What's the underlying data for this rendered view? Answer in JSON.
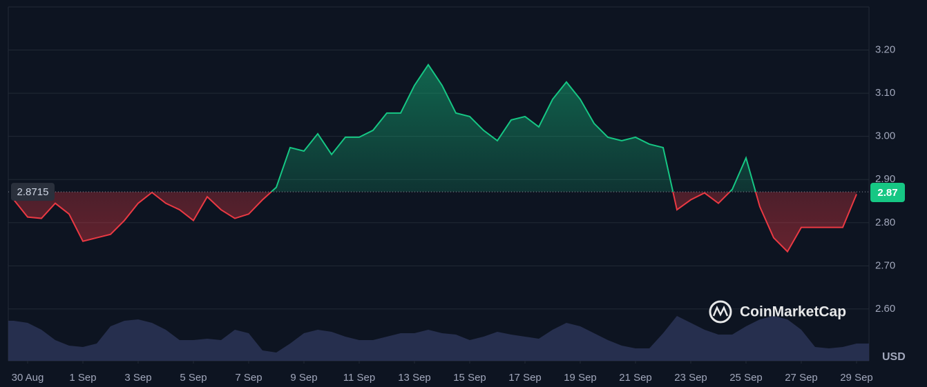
{
  "chart_data": {
    "type": "line",
    "watermark": "CoinMarketCap",
    "currency": "USD",
    "baseline": 2.8715,
    "price_label": 2.87,
    "colors": {
      "up": "#16c784",
      "down": "#ea3943",
      "volume": "#2b3456"
    },
    "x": [
      -0.5,
      0,
      0.5,
      1,
      1.5,
      2,
      2.5,
      3,
      3.5,
      4,
      4.5,
      5,
      5.5,
      6,
      6.5,
      7,
      7.5,
      8,
      8.5,
      9,
      9.5,
      10,
      10.5,
      11,
      11.5,
      12,
      12.5,
      13,
      13.5,
      14,
      14.5,
      15,
      15.5,
      16,
      16.5,
      17,
      17.5,
      18,
      18.5,
      19,
      19.5,
      20,
      20.5,
      21,
      21.5,
      22,
      22.5,
      23,
      23.5,
      24,
      24.5,
      25,
      25.5,
      26,
      26.5,
      27,
      27.5,
      28,
      28.5,
      29,
      29.5,
      30
    ],
    "series": [
      {
        "name": "Price",
        "values": [
          2.853,
          2.813,
          2.81,
          2.845,
          2.82,
          2.757,
          2.765,
          2.773,
          2.805,
          2.845,
          2.87,
          2.845,
          2.83,
          2.805,
          2.86,
          2.83,
          2.81,
          2.82,
          2.853,
          2.882,
          2.974,
          2.966,
          3.006,
          2.958,
          2.998,
          2.998,
          3.014,
          3.054,
          3.054,
          3.118,
          3.166,
          3.118,
          3.054,
          3.046,
          3.014,
          2.99,
          3.038,
          3.046,
          3.022,
          3.086,
          3.126,
          3.086,
          3.03,
          2.998,
          2.99,
          2.998,
          2.982,
          2.974,
          2.83,
          2.853,
          2.869,
          2.845,
          2.877,
          2.95,
          2.837,
          2.765,
          2.733,
          2.789,
          2.789,
          2.789,
          2.789,
          2.866
        ]
      },
      {
        "name": "Volume",
        "values": [
          58,
          55,
          45,
          30,
          22,
          20,
          25,
          50,
          58,
          60,
          55,
          45,
          30,
          30,
          32,
          30,
          45,
          40,
          15,
          12,
          25,
          40,
          45,
          42,
          35,
          30,
          30,
          35,
          40,
          40,
          45,
          40,
          38,
          30,
          35,
          42,
          38,
          35,
          32,
          45,
          55,
          50,
          40,
          30,
          22,
          18,
          18,
          40,
          65,
          55,
          45,
          38,
          38,
          50,
          60,
          65,
          60,
          45,
          20,
          18,
          20,
          25
        ]
      }
    ],
    "xlim": [
      -0.7,
      30.45
    ],
    "xticks": [
      {
        "value": 0,
        "label": "30 Aug"
      },
      {
        "value": 2,
        "label": "1 Sep"
      },
      {
        "value": 4,
        "label": "3 Sep"
      },
      {
        "value": 6,
        "label": "5 Sep"
      },
      {
        "value": 8,
        "label": "7 Sep"
      },
      {
        "value": 10,
        "label": "9 Sep"
      },
      {
        "value": 12,
        "label": "11 Sep"
      },
      {
        "value": 14,
        "label": "13 Sep"
      },
      {
        "value": 16,
        "label": "15 Sep"
      },
      {
        "value": 18,
        "label": "17 Sep"
      },
      {
        "value": 20,
        "label": "19 Sep"
      },
      {
        "value": 22,
        "label": "21 Sep"
      },
      {
        "value": 24,
        "label": "23 Sep"
      },
      {
        "value": 26,
        "label": "25 Sep"
      },
      {
        "value": 28,
        "label": "27 Sep"
      },
      {
        "value": 30,
        "label": "29 Sep"
      }
    ],
    "ylim": [
      2.48,
      3.3
    ],
    "yticks": [
      {
        "value": 2.6,
        "label": "2.60"
      },
      {
        "value": 2.7,
        "label": "2.70"
      },
      {
        "value": 2.8,
        "label": "2.80"
      },
      {
        "value": 2.9,
        "label": "2.90"
      },
      {
        "value": 3.0,
        "label": "3.00"
      },
      {
        "value": 3.1,
        "label": "3.10"
      },
      {
        "value": 3.2,
        "label": "3.20"
      }
    ],
    "grid": true
  }
}
